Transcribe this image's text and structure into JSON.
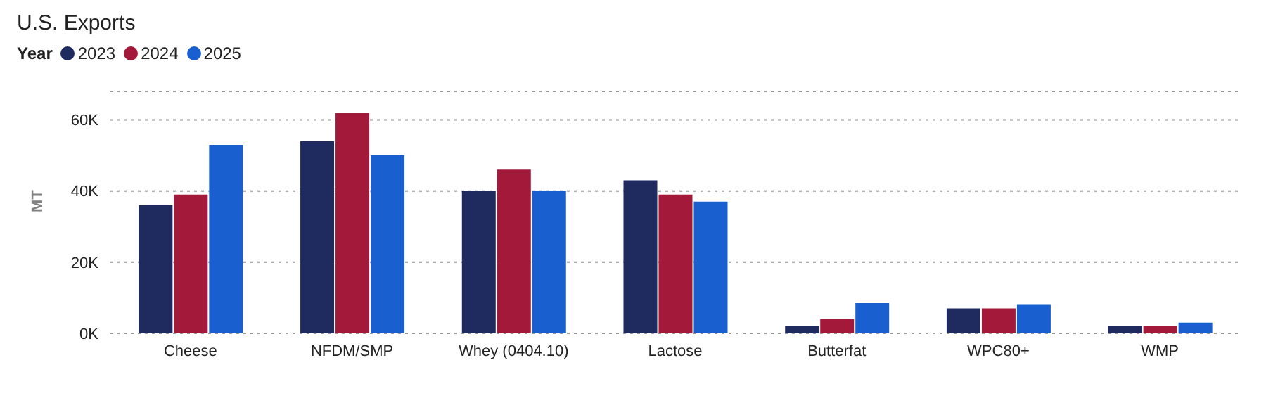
{
  "chart_data": {
    "type": "bar",
    "title": "U.S. Exports",
    "ylabel": "MT",
    "legend_title": "Year",
    "legend": "top left",
    "grid": "y",
    "categories": [
      "Cheese",
      "NFDM/SMP",
      "Whey (0404.10)",
      "Lactose",
      "Butterfat",
      "WPC80+",
      "WMP"
    ],
    "series": [
      {
        "name": "2023",
        "color": "#1f2a5e",
        "values": [
          36,
          54,
          40,
          43,
          2,
          7,
          2
        ]
      },
      {
        "name": "2024",
        "color": "#a3193a",
        "values": [
          39,
          62,
          46,
          39,
          4,
          7,
          2
        ]
      },
      {
        "name": "2025",
        "color": "#1a5fd0",
        "values": [
          53,
          50,
          40,
          37,
          8.5,
          8,
          3
        ]
      }
    ],
    "ylim": [
      0,
      68
    ],
    "yticks": [
      {
        "value": 0,
        "label": "0K"
      },
      {
        "value": 20,
        "label": "20K"
      },
      {
        "value": 40,
        "label": "40K"
      },
      {
        "value": 60,
        "label": "60K"
      }
    ]
  }
}
